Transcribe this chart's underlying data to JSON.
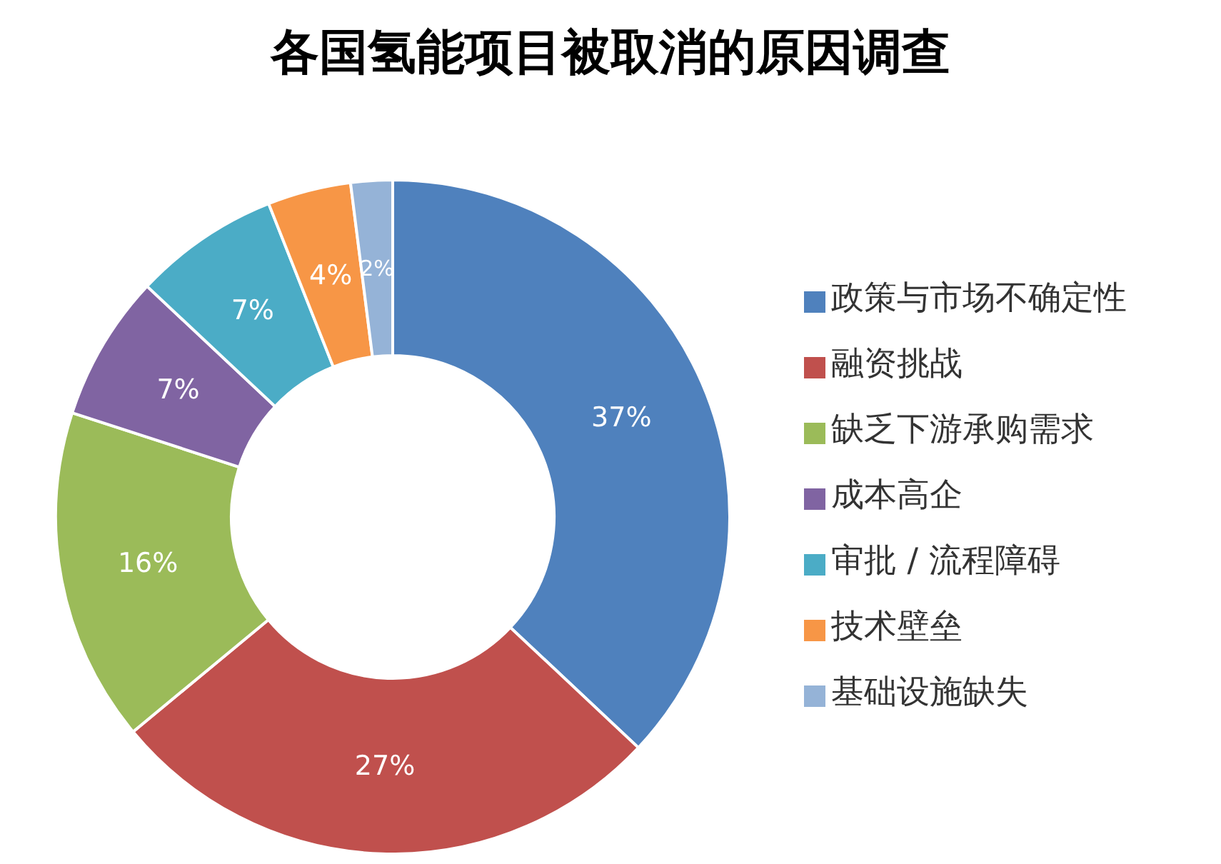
{
  "chart_data": {
    "type": "donut",
    "title": "各国氢能项目被取消的原因调查",
    "categories": [
      "政策与市场不确定性",
      "融资挑战",
      "缺乏下游承购需求",
      "成本高企",
      "审批 / 流程障碍",
      "技术壁垒",
      "基础设施缺失"
    ],
    "values": [
      37,
      27,
      16,
      7,
      7,
      4,
      2
    ],
    "value_labels": [
      "37%",
      "27%",
      "16%",
      "7%",
      "7%",
      "4%",
      "2%"
    ],
    "colors": [
      "#4f81bd",
      "#c0504d",
      "#9bbb59",
      "#8064a2",
      "#4bacc6",
      "#f79646",
      "#95b3d7"
    ],
    "legend": "right"
  }
}
